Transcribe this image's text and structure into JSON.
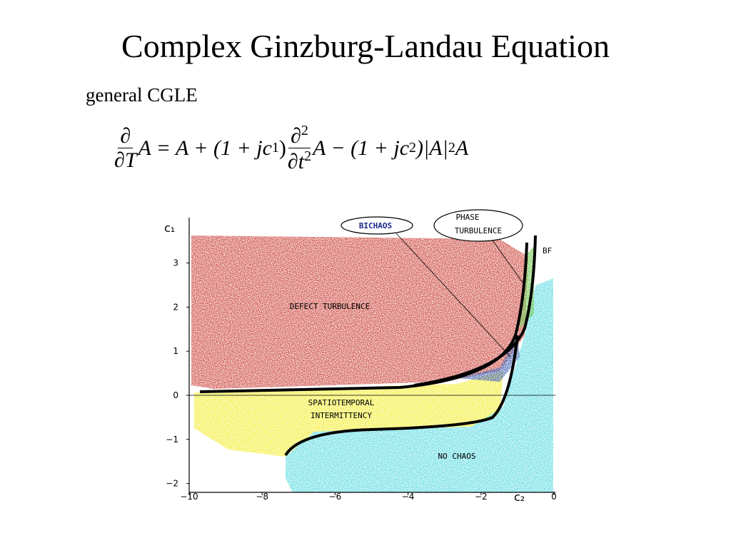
{
  "title": "Complex Ginzburg-Landau Equation",
  "subtitle": "general CGLE",
  "equation": {
    "d1_num": "∂",
    "d1_den": "∂T",
    "part1": "A = A + (1 + jc",
    "sub1": "1",
    "part2": ")",
    "d2_num": "∂",
    "d2_num_sup": "2",
    "d2_den": "∂t",
    "d2_den_sup": "2",
    "part3": "A − (1 + jc",
    "sub2": "2",
    "part4": ")|A|",
    "sup": "2",
    "part5": "A"
  },
  "diagram": {
    "x_label": "c₂",
    "y_label": "c₁",
    "xticks": [
      {
        "value": -10,
        "label": "−10"
      },
      {
        "value": -8,
        "label": "−8"
      },
      {
        "value": -6,
        "label": "−6"
      },
      {
        "value": -4,
        "label": "−4"
      },
      {
        "value": -2,
        "label": "−2"
      },
      0
    ],
    "yticks": [
      3,
      2,
      1,
      0,
      {
        "value": -1,
        "label": "−1"
      },
      {
        "value": -2,
        "label": "−2"
      }
    ],
    "regions": {
      "defect": "DEFECT TURBULENCE",
      "sti_1": "SPATIOTEMPORAL",
      "sti_2": "INTERMITTENCY",
      "nochaos": "NO CHAOS",
      "bichaos": "BICHAOS",
      "phase_1": "PHASE",
      "phase_2": "TURBULENCE",
      "bf": "BF"
    }
  }
}
